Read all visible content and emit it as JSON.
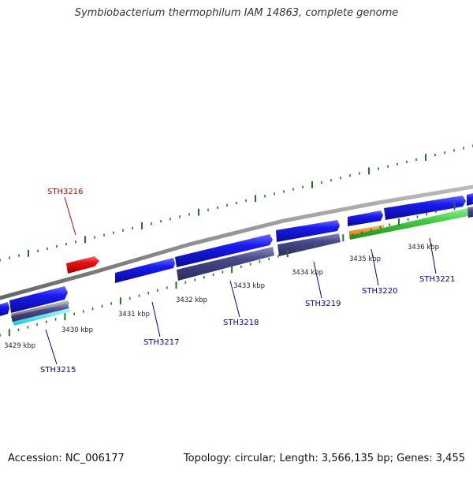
{
  "title": "Symbiobacterium thermophilum IAM 14863, complete genome",
  "footer": {
    "accession": "Accession: NC_006177",
    "summary": "Topology: circular; Length: 3,566,135 bp; Genes: 3,455"
  },
  "colors": {
    "forward_gene": "#1a1af0",
    "highlight_gene": "#ee1111",
    "track_feature": "#4a4a8c",
    "orange_feature": "#ff8c1a",
    "green_feature": "#44cc44",
    "cyan_feature": "#22e8e8",
    "backbone": "#888888",
    "tick": "#1a7a1a",
    "label_blue": "#0000aa",
    "label_red": "#cc0000"
  },
  "diagram": {
    "kbp_labels": [
      {
        "text": "3429 kbp"
      },
      {
        "text": "3430 kbp"
      },
      {
        "text": "3431 kbp"
      },
      {
        "text": "3432 kbp"
      },
      {
        "text": "3433 kbp"
      },
      {
        "text": "3434 kbp"
      },
      {
        "text": "3435 kbp"
      },
      {
        "text": "3436 kbp"
      }
    ],
    "gene_labels": [
      {
        "text": "STH3216",
        "color": "label_red"
      },
      {
        "text": "STH3215",
        "color": "label_blue"
      },
      {
        "text": "STH3217",
        "color": "label_blue"
      },
      {
        "text": "STH3218",
        "color": "label_blue"
      },
      {
        "text": "STH3219",
        "color": "label_blue"
      },
      {
        "text": "STH3220",
        "color": "label_blue"
      },
      {
        "text": "STH3221",
        "color": "label_blue"
      }
    ]
  }
}
